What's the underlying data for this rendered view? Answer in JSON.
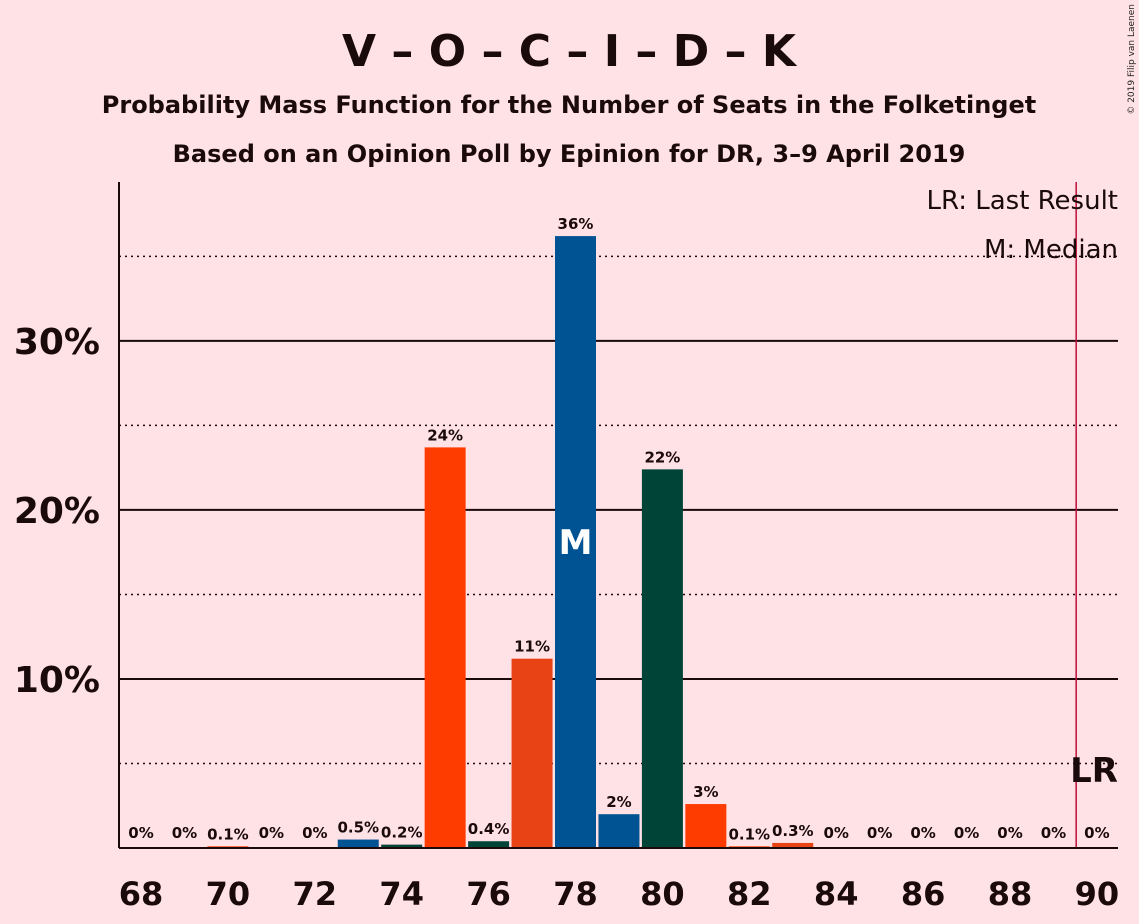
{
  "chart_data": {
    "type": "bar",
    "title": "V – O – C – I – D – K",
    "subtitle_1": "Probability Mass Function for the Number of Seats in the Folketinget",
    "subtitle_2": "Based on an Opinion Poll by Epinion for DR, 3–9 April 2019",
    "credit": "© 2019 Filip van Laenen",
    "legend": {
      "lr": "LR: Last Result",
      "median": "M: Median"
    },
    "xlim": [
      68,
      90
    ],
    "ylim": [
      0,
      39.4
    ],
    "y_ticks": [
      {
        "value": 10,
        "label": "10%"
      },
      {
        "value": 20,
        "label": "20%"
      },
      {
        "value": 30,
        "label": "30%"
      }
    ],
    "y_minor_gridlines": [
      5,
      15,
      25,
      35
    ],
    "x_ticks": [
      "68",
      "70",
      "72",
      "74",
      "76",
      "78",
      "80",
      "82",
      "84",
      "86",
      "88",
      "90"
    ],
    "median_seat": 78,
    "median_label": "M",
    "last_result_seat": 89.5,
    "last_result_label": "LR",
    "bars": [
      {
        "seats": 68,
        "value": 0,
        "label": "0%",
        "color": "#ff3c00"
      },
      {
        "seats": 69,
        "value": 0,
        "label": "0%",
        "color": "#ff3c00"
      },
      {
        "seats": 70,
        "value": 0.1,
        "label": "0.1%",
        "color": "#ff3c00"
      },
      {
        "seats": 71,
        "value": 0,
        "label": "0%",
        "color": "#ff3c00"
      },
      {
        "seats": 72,
        "value": 0,
        "label": "0%",
        "color": "#ff3c00"
      },
      {
        "seats": 73,
        "value": 0.5,
        "label": "0.5%",
        "color": "#005392"
      },
      {
        "seats": 74,
        "value": 0.2,
        "label": "0.2%",
        "color": "#004438"
      },
      {
        "seats": 75,
        "value": 23.7,
        "label": "24%",
        "color": "#ff3c00"
      },
      {
        "seats": 76,
        "value": 0.4,
        "label": "0.4%",
        "color": "#004438"
      },
      {
        "seats": 77,
        "value": 11.2,
        "label": "11%",
        "color": "#e84315"
      },
      {
        "seats": 78,
        "value": 36.2,
        "label": "36%",
        "color": "#005392"
      },
      {
        "seats": 79,
        "value": 2.0,
        "label": "2%",
        "color": "#005392"
      },
      {
        "seats": 80,
        "value": 22.4,
        "label": "22%",
        "color": "#004438"
      },
      {
        "seats": 81,
        "value": 2.6,
        "label": "3%",
        "color": "#ff3c00"
      },
      {
        "seats": 82,
        "value": 0.1,
        "label": "0.1%",
        "color": "#ff3c00"
      },
      {
        "seats": 83,
        "value": 0.3,
        "label": "0.3%",
        "color": "#e84315"
      },
      {
        "seats": 84,
        "value": 0,
        "label": "0%",
        "color": "#ff3c00"
      },
      {
        "seats": 85,
        "value": 0,
        "label": "0%",
        "color": "#ff3c00"
      },
      {
        "seats": 86,
        "value": 0,
        "label": "0%",
        "color": "#ff3c00"
      },
      {
        "seats": 87,
        "value": 0,
        "label": "0%",
        "color": "#ff3c00"
      },
      {
        "seats": 88,
        "value": 0,
        "label": "0%",
        "color": "#ff3c00"
      },
      {
        "seats": 89,
        "value": 0,
        "label": "0%",
        "color": "#ff3c00"
      },
      {
        "seats": 90,
        "value": 0,
        "label": "0%",
        "color": "#ff3c00"
      }
    ]
  }
}
